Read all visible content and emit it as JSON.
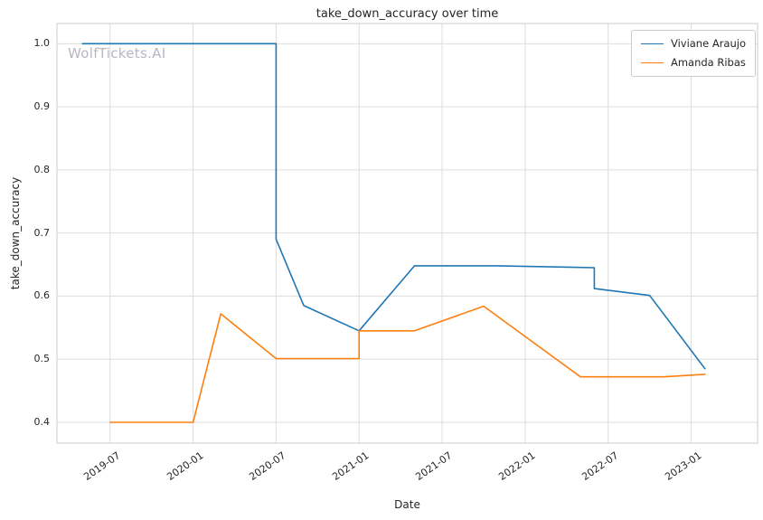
{
  "watermark": "WolfTickets.AI",
  "chart_data": {
    "type": "line",
    "title": "take_down_accuracy over time",
    "xlabel": "Date",
    "ylabel": "take_down_accuracy",
    "x_ticks": [
      "2019-07",
      "2020-01",
      "2020-07",
      "2021-01",
      "2021-07",
      "2022-01",
      "2022-07",
      "2023-01"
    ],
    "y_ticks": [
      "0.4",
      "0.5",
      "0.6",
      "0.7",
      "0.8",
      "0.9",
      "1.0"
    ],
    "xlim": [
      2019.18,
      2023.4
    ],
    "ylim": [
      0.367,
      1.032
    ],
    "grid": true,
    "legend_position": "upper right",
    "grid_color": "#dddddd",
    "spine_color": "#cccccc",
    "series": [
      {
        "name": "Viviane Araujo",
        "color": "#1f77b4",
        "points": [
          [
            "2019-05",
            1.0
          ],
          [
            "2020-07",
            1.0
          ],
          [
            "2020-07",
            0.69
          ],
          [
            "2020-09",
            0.585
          ],
          [
            "2021-01",
            0.545
          ],
          [
            "2021-05",
            0.648
          ],
          [
            "2021-11",
            0.648
          ],
          [
            "2022-06",
            0.645
          ],
          [
            "2022-06",
            0.612
          ],
          [
            "2022-10",
            0.601
          ],
          [
            "2023-02",
            0.485
          ]
        ]
      },
      {
        "name": "Amanda Ribas",
        "color": "#ff7f0e",
        "points": [
          [
            "2019-07",
            0.4
          ],
          [
            "2020-01",
            0.4
          ],
          [
            "2020-03",
            0.572
          ],
          [
            "2020-07",
            0.501
          ],
          [
            "2021-01",
            0.501
          ],
          [
            "2021-01",
            0.545
          ],
          [
            "2021-05",
            0.545
          ],
          [
            "2021-10",
            0.584
          ],
          [
            "2022-05",
            0.472
          ],
          [
            "2022-11",
            0.472
          ],
          [
            "2023-02",
            0.476
          ]
        ]
      }
    ]
  }
}
